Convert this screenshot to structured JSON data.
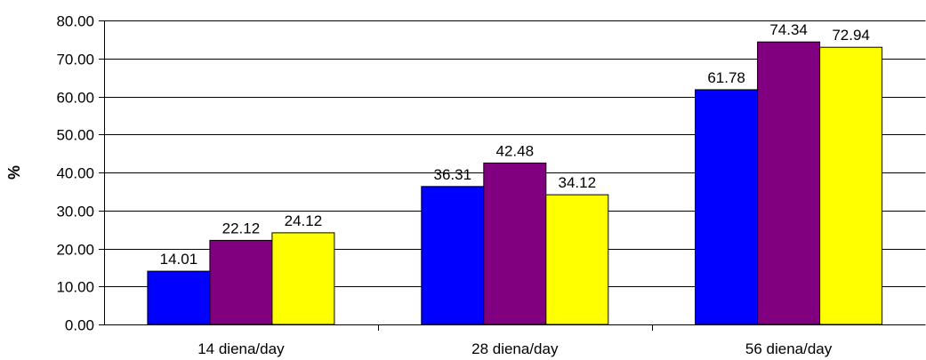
{
  "chart_data": {
    "type": "bar",
    "title": "",
    "xlabel": "",
    "ylabel": "%",
    "ylim": [
      0,
      80
    ],
    "yticks": [
      "0.00",
      "10.00",
      "20.00",
      "30.00",
      "40.00",
      "50.00",
      "60.00",
      "70.00",
      "80.00"
    ],
    "grid": true,
    "legend": "none",
    "categories": [
      "14 diena/day",
      "28 diena/day",
      "56 diena/day"
    ],
    "series": [
      {
        "color": "#0000ff",
        "values": [
          14.01,
          36.31,
          61.78
        ],
        "labels": [
          "14.01",
          "36.31",
          "61.78"
        ]
      },
      {
        "color": "#800080",
        "values": [
          22.12,
          42.48,
          74.34
        ],
        "labels": [
          "22.12",
          "42.48",
          "74.34"
        ]
      },
      {
        "color": "#ffff00",
        "values": [
          24.12,
          34.12,
          72.94
        ],
        "labels": [
          "24.12",
          "34.12",
          "72.94"
        ]
      }
    ]
  }
}
